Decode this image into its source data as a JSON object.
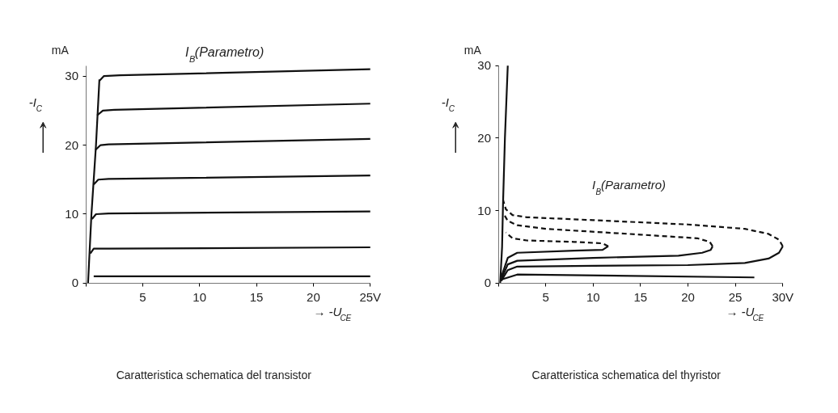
{
  "chart_data": [
    {
      "type": "line",
      "title": "I$_{B}$(Parametro)",
      "xlabel": "→ -U$_{CE}$",
      "ylabel": "-I$_{C}$",
      "xlim": [
        0,
        25
      ],
      "ylim": [
        0,
        31.5
      ],
      "xticks": [
        {
          "value": 0,
          "label": null
        },
        5,
        10,
        15,
        20,
        {
          "value": 25,
          "label": "25V"
        }
      ],
      "yticks": [
        0,
        10,
        20,
        30
      ],
      "annotations": [
        "mA",
        "Caratteristica schematica del transistor"
      ],
      "line_style": "solid",
      "series": [
        {
          "color": "#111111",
          "x": [
            0.2,
            0.5,
            0.9,
            1.2
          ],
          "values": [
            0,
            10,
            20,
            29.5
          ]
        },
        {
          "color": "#111111",
          "x": [
            0.7,
            25
          ],
          "values": [
            1.0,
            1.0
          ]
        },
        {
          "color": "#111111",
          "x": [
            0.4,
            0.7,
            2,
            25
          ],
          "values": [
            4.3,
            5,
            5,
            5.2
          ]
        },
        {
          "color": "#111111",
          "x": [
            0.55,
            0.9,
            2,
            25
          ],
          "values": [
            9.3,
            10,
            10.1,
            10.4
          ]
        },
        {
          "color": "#111111",
          "x": [
            0.7,
            1.1,
            2,
            25
          ],
          "values": [
            14.3,
            15,
            15.1,
            15.6
          ]
        },
        {
          "color": "#111111",
          "x": [
            0.85,
            1.3,
            2,
            25
          ],
          "values": [
            19.3,
            20,
            20.1,
            20.9
          ]
        },
        {
          "color": "#111111",
          "x": [
            1.0,
            1.5,
            2.5,
            25
          ],
          "values": [
            24.3,
            25,
            25.1,
            26
          ]
        },
        {
          "color": "#111111",
          "x": [
            1.2,
            1.6,
            3,
            25
          ],
          "values": [
            29.3,
            30,
            30.1,
            31
          ]
        }
      ]
    },
    {
      "type": "line",
      "xlabel": "→ -U$_{CE}$",
      "ylabel": "-I$_{C}$",
      "xlim": [
        0,
        30
      ],
      "ylim": [
        0,
        30
      ],
      "xticks": [
        {
          "value": 0,
          "label": null
        },
        5,
        10,
        15,
        20,
        25,
        {
          "value": 30,
          "label": "30V"
        }
      ],
      "yticks": [
        0,
        10,
        20,
        30
      ],
      "annotations": [
        "mA",
        "I$_{B}$(Parametro)",
        "Caratteristica schematica del thyristor"
      ],
      "line_style": "solid",
      "series": [
        {
          "color": "#111111",
          "x": [
            0.2,
            0.4,
            0.5,
            0.7,
            1.0
          ],
          "values": [
            0,
            5,
            11,
            20,
            30
          ]
        },
        {
          "color": "#111111",
          "x": [
            0.3,
            2,
            27
          ],
          "values": [
            0.5,
            1.2,
            0.8
          ]
        },
        {
          "color": "#111111",
          "x": [
            0.3,
            1,
            2,
            10,
            20,
            26,
            28.5,
            29.6,
            30
          ],
          "values": [
            0.3,
            1.8,
            2.3,
            2.4,
            2.5,
            2.8,
            3.4,
            4.2,
            5.1
          ]
        },
        {
          "color": "#111111",
          "line_style": "dashed",
          "x": [
            30,
            29.6,
            28.5,
            26,
            20,
            10,
            3,
            1.5,
            0.8,
            0.5
          ],
          "values": [
            5.1,
            6,
            6.8,
            7.5,
            8.1,
            8.7,
            9.1,
            9.4,
            10.2,
            11.5
          ]
        },
        {
          "color": "#111111",
          "x": [
            0.3,
            1,
            2,
            10,
            19,
            21.5,
            22.4,
            22.6
          ],
          "values": [
            0.5,
            2.6,
            3.1,
            3.5,
            3.8,
            4.2,
            4.6,
            5.1
          ]
        },
        {
          "color": "#111111",
          "line_style": "dashed",
          "x": [
            22.6,
            22.3,
            21,
            15,
            5,
            2,
            1,
            0.6
          ],
          "values": [
            5.1,
            5.7,
            6.2,
            6.7,
            7.5,
            8,
            8.6,
            9.5
          ]
        },
        {
          "color": "#111111",
          "x": [
            0.3,
            1,
            2,
            8,
            11,
            11.6
          ],
          "values": [
            0.8,
            3.5,
            4.2,
            4.5,
            4.6,
            5.1
          ]
        },
        {
          "color": "#111111",
          "line_style": "dashed",
          "x": [
            11.6,
            11,
            8,
            3,
            1.5,
            0.8
          ],
          "values": [
            5.1,
            5.5,
            5.7,
            5.9,
            6.2,
            7
          ]
        }
      ]
    }
  ]
}
